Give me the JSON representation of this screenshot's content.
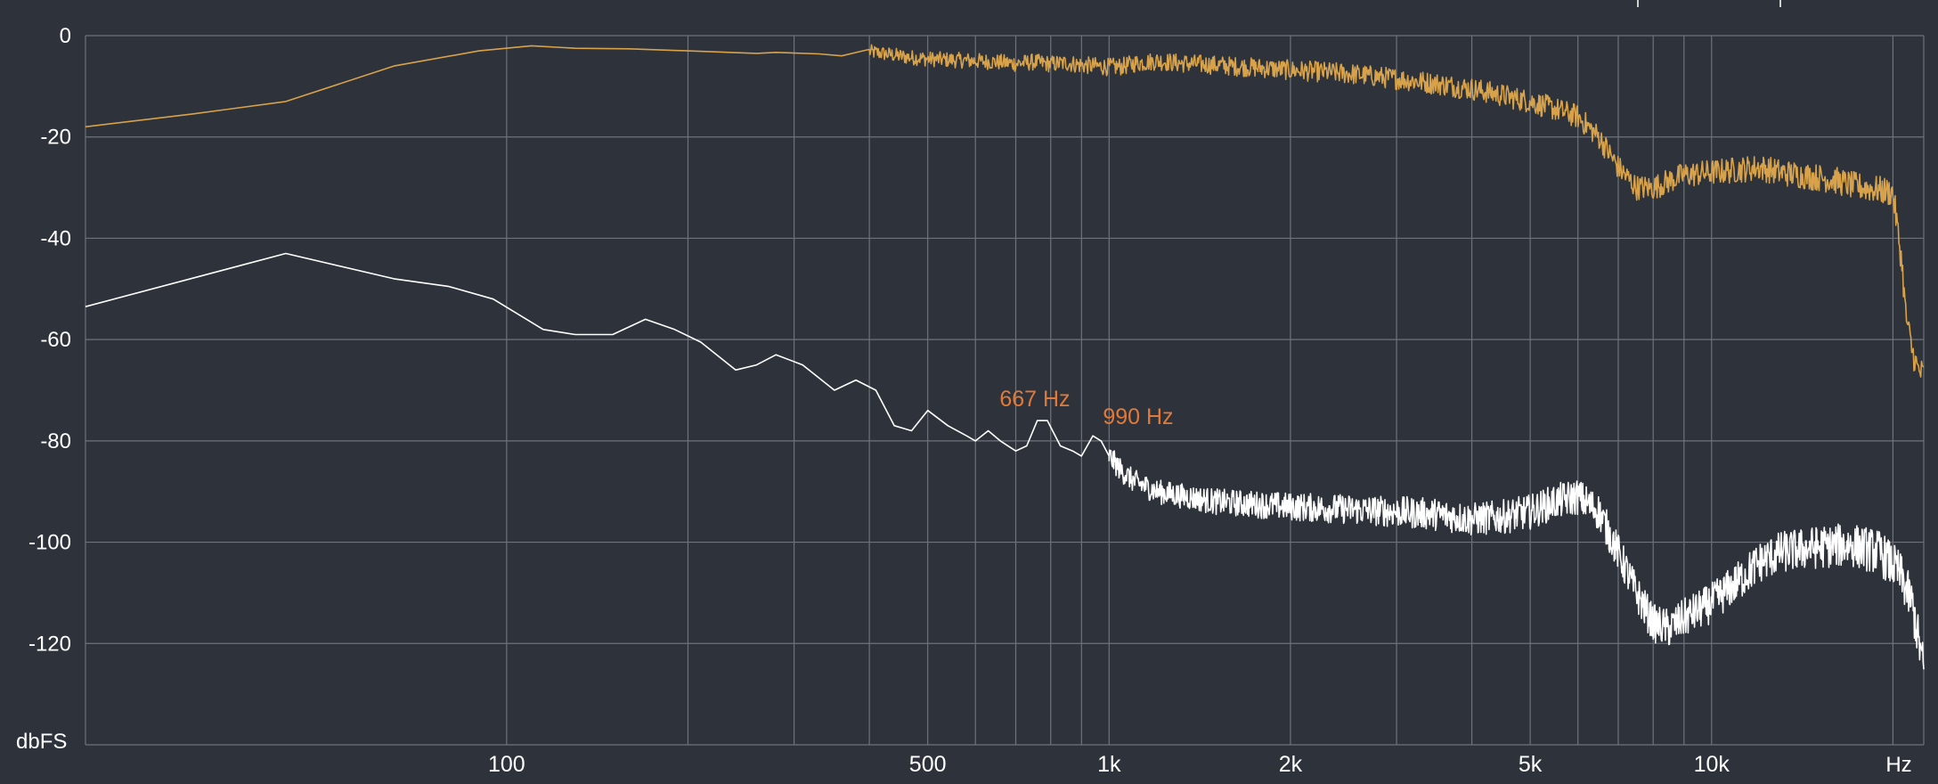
{
  "chart_data": {
    "type": "line",
    "title": "",
    "xlabel": "",
    "ylabel": "",
    "x_scale": "log",
    "xlim": [
      20,
      22500
    ],
    "ylim": [
      -140,
      0
    ],
    "grid": true,
    "colors": {
      "background": "#2e333b",
      "grid": "#6e737b",
      "text": "#ffffff",
      "annotation": "#e07a3a",
      "series_a": "#d8a24a",
      "series_b": "#ffffff"
    },
    "y_unit_label": "dbFS",
    "x_unit_label": "Hz",
    "y_ticks": [
      {
        "value": 0,
        "label": "0"
      },
      {
        "value": -20,
        "label": "-20"
      },
      {
        "value": -40,
        "label": "-40"
      },
      {
        "value": -60,
        "label": "-60"
      },
      {
        "value": -80,
        "label": "-80"
      },
      {
        "value": -100,
        "label": "-100"
      },
      {
        "value": -120,
        "label": "-120"
      }
    ],
    "x_ticks": [
      {
        "value": 100,
        "label": "100"
      },
      {
        "value": 500,
        "label": "500"
      },
      {
        "value": 1000,
        "label": "1k"
      },
      {
        "value": 2000,
        "label": "2k"
      },
      {
        "value": 5000,
        "label": "5k"
      },
      {
        "value": 10000,
        "label": "10k"
      }
    ],
    "x_gridlines": [
      100,
      200,
      300,
      400,
      500,
      600,
      700,
      800,
      900,
      1000,
      2000,
      3000,
      4000,
      5000,
      6000,
      7000,
      8000,
      9000,
      10000,
      20000
    ],
    "annotations": [
      {
        "text": "667 Hz",
        "x": 667,
        "y": -76
      },
      {
        "text": "990 Hz",
        "x": 990,
        "y": -79.5
      }
    ],
    "series": [
      {
        "points": [
          [
            20,
            -18
          ],
          [
            30,
            -15.5
          ],
          [
            43,
            -13
          ],
          [
            65,
            -6
          ],
          [
            90,
            -3
          ],
          [
            110,
            -2
          ],
          [
            130,
            -2.5
          ],
          [
            160,
            -2.6
          ],
          [
            200,
            -3
          ],
          [
            260,
            -3.5
          ],
          [
            280,
            -3.3
          ],
          [
            330,
            -3.6
          ],
          [
            360,
            -4
          ],
          [
            390,
            -3
          ],
          [
            420,
            -3.5
          ],
          [
            460,
            -4.2
          ],
          [
            500,
            -4.6
          ],
          [
            550,
            -4.8
          ],
          [
            600,
            -5
          ],
          [
            650,
            -5.2
          ],
          [
            700,
            -5.5
          ],
          [
            750,
            -5.2
          ],
          [
            800,
            -5.6
          ],
          [
            850,
            -5.4
          ],
          [
            900,
            -5.8
          ],
          [
            950,
            -6
          ],
          [
            1000,
            -6.2
          ],
          [
            1050,
            -6.1
          ],
          [
            1100,
            -5.5
          ],
          [
            1200,
            -5
          ],
          [
            1300,
            -5.4
          ],
          [
            1500,
            -5.8
          ],
          [
            1800,
            -6.4
          ],
          [
            2000,
            -6.8
          ],
          [
            2500,
            -7.5
          ],
          [
            3000,
            -8.5
          ],
          [
            3500,
            -9.5
          ],
          [
            4000,
            -10.5
          ],
          [
            4500,
            -11.8
          ],
          [
            5000,
            -13
          ],
          [
            5500,
            -14.5
          ],
          [
            6000,
            -16
          ],
          [
            6500,
            -20
          ],
          [
            7000,
            -26
          ],
          [
            7500,
            -30
          ],
          [
            8000,
            -30
          ],
          [
            9000,
            -27.5
          ],
          [
            10000,
            -27
          ],
          [
            11000,
            -26.5
          ],
          [
            12000,
            -26
          ],
          [
            13000,
            -27
          ],
          [
            14000,
            -27.5
          ],
          [
            15000,
            -28
          ],
          [
            16000,
            -28.5
          ],
          [
            17000,
            -29.5
          ],
          [
            18000,
            -30
          ],
          [
            19000,
            -30.5
          ],
          [
            20000,
            -31
          ],
          [
            20700,
            -45
          ],
          [
            21000,
            -55
          ],
          [
            21500,
            -62
          ],
          [
            22000,
            -66
          ],
          [
            22500,
            -67
          ]
        ],
        "noise_from_x": 400,
        "noise_amplitude": 2.2
      },
      {
        "points": [
          [
            20,
            -53.5
          ],
          [
            43,
            -43
          ],
          [
            65,
            -48
          ],
          [
            80,
            -49.5
          ],
          [
            95,
            -52
          ],
          [
            115,
            -58
          ],
          [
            130,
            -59
          ],
          [
            150,
            -59
          ],
          [
            170,
            -56
          ],
          [
            190,
            -58
          ],
          [
            210,
            -60.5
          ],
          [
            240,
            -66
          ],
          [
            260,
            -65
          ],
          [
            280,
            -63
          ],
          [
            310,
            -65
          ],
          [
            350,
            -70
          ],
          [
            380,
            -68
          ],
          [
            410,
            -70
          ],
          [
            440,
            -77
          ],
          [
            470,
            -78
          ],
          [
            500,
            -74
          ],
          [
            540,
            -77
          ],
          [
            580,
            -79
          ],
          [
            600,
            -80
          ],
          [
            630,
            -78
          ],
          [
            660,
            -80
          ],
          [
            700,
            -82
          ],
          [
            730,
            -81
          ],
          [
            760,
            -76
          ],
          [
            790,
            -76
          ],
          [
            830,
            -81
          ],
          [
            870,
            -82
          ],
          [
            900,
            -83
          ],
          [
            940,
            -79
          ],
          [
            970,
            -80
          ],
          [
            1000,
            -83
          ],
          [
            1050,
            -86
          ],
          [
            1100,
            -88
          ],
          [
            1200,
            -90
          ],
          [
            1500,
            -92
          ],
          [
            2000,
            -93
          ],
          [
            2500,
            -93.5
          ],
          [
            3000,
            -94
          ],
          [
            3500,
            -94.5
          ],
          [
            4000,
            -95.5
          ],
          [
            4500,
            -95
          ],
          [
            5000,
            -94
          ],
          [
            5500,
            -92
          ],
          [
            6000,
            -91
          ],
          [
            6500,
            -94
          ],
          [
            7000,
            -102
          ],
          [
            7500,
            -110
          ],
          [
            8000,
            -116
          ],
          [
            8500,
            -117
          ],
          [
            9000,
            -115
          ],
          [
            10000,
            -112
          ],
          [
            11000,
            -108
          ],
          [
            12000,
            -104
          ],
          [
            13000,
            -102
          ],
          [
            15000,
            -101
          ],
          [
            17000,
            -100.5
          ],
          [
            19000,
            -102
          ],
          [
            20500,
            -106
          ],
          [
            21500,
            -112
          ],
          [
            22500,
            -125
          ]
        ],
        "noise_from_x": 1000,
        "noise_amplitude": 3.5
      }
    ]
  }
}
